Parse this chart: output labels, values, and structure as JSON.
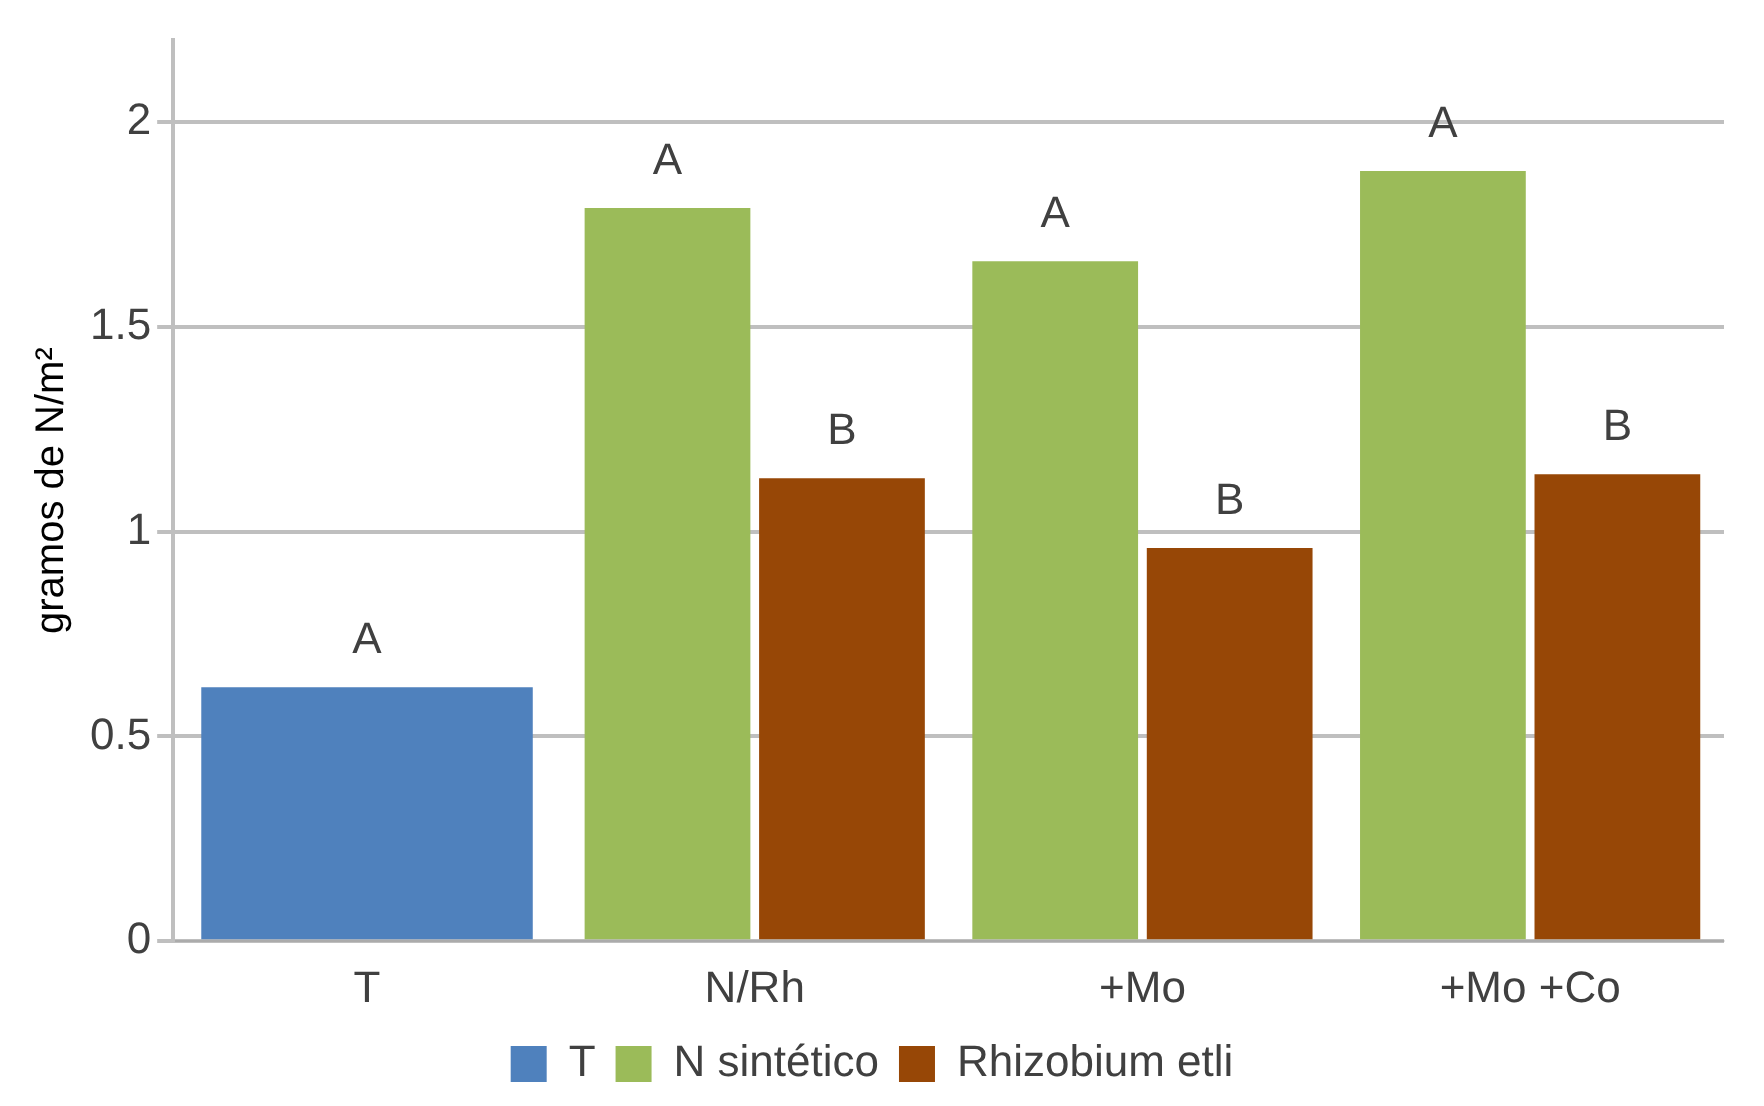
{
  "chart_data": {
    "type": "bar",
    "ylabel": "gramos de N/m²",
    "categories": [
      "T",
      "N/Rh",
      "+Mo",
      "+Mo +Co"
    ],
    "series": [
      {
        "name": "T",
        "color": "#4f81bd",
        "values": [
          0.62,
          null,
          null,
          null
        ]
      },
      {
        "name": "N sintético",
        "color": "#9bbb59",
        "values": [
          null,
          1.79,
          1.66,
          1.88
        ]
      },
      {
        "name": "Rhizobium etli",
        "color": "#974706",
        "values": [
          null,
          1.13,
          0.96,
          1.14
        ]
      }
    ],
    "ylim": [
      0,
      2.2
    ],
    "yticks": [
      0,
      0.5,
      1,
      1.5,
      2
    ],
    "grid": "y",
    "legend": "bottom",
    "annotations": [
      {
        "text": "A",
        "x": "T",
        "y": 0.62
      },
      {
        "text": "A",
        "x": "N/Rh",
        "y": 1.79
      },
      {
        "text": "B",
        "x": "N/Rh",
        "y": 1.13
      },
      {
        "text": "A",
        "x": "+Mo",
        "y": 1.66
      },
      {
        "text": "B",
        "x": "+Mo",
        "y": 0.96
      },
      {
        "text": "A",
        "x": "+Mo +Co",
        "y": 1.88
      },
      {
        "text": "B",
        "x": "+Mo +Co",
        "y": 1.14
      }
    ]
  }
}
